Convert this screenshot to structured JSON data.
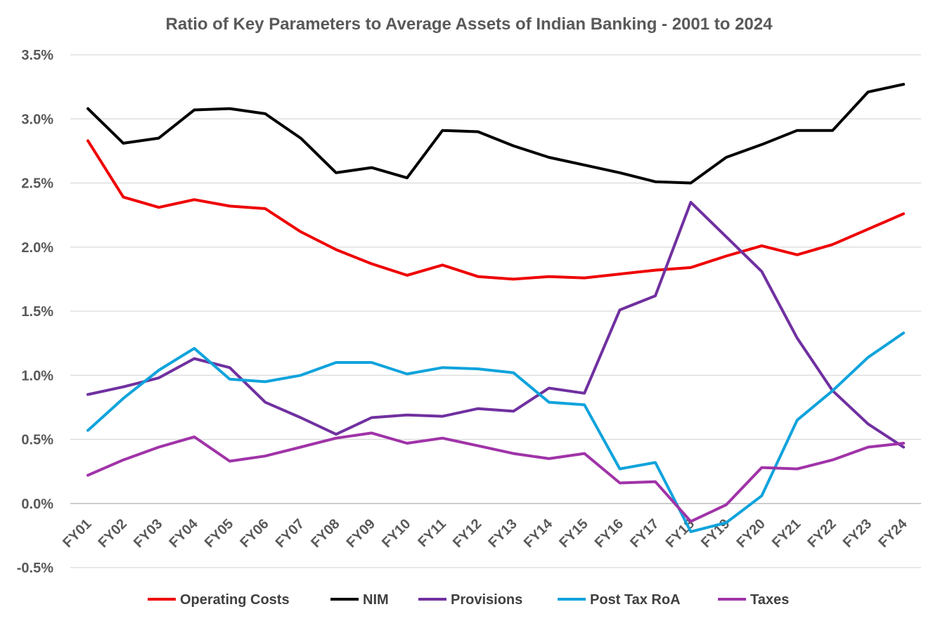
{
  "chart_data": {
    "type": "line",
    "title": "Ratio of Key Parameters to Average Assets of Indian Banking  - 2001 to 2024",
    "xlabel": "",
    "ylabel": "",
    "ylim": [
      -0.5,
      3.5
    ],
    "ytick_values": [
      -0.5,
      0.0,
      0.5,
      1.0,
      1.5,
      2.0,
      2.5,
      3.0,
      3.5
    ],
    "ytick_labels": [
      "-0.5%",
      "0.0%",
      "0.5%",
      "1.0%",
      "1.5%",
      "2.0%",
      "2.5%",
      "3.0%",
      "3.5%"
    ],
    "grid": "horizontal",
    "legend_position": "bottom",
    "categories": [
      "FY01",
      "FY02",
      "FY03",
      "FY04",
      "FY05",
      "FY06",
      "FY07",
      "FY08",
      "FY09",
      "FY10",
      "FY11",
      "FY12",
      "FY13",
      "FY14",
      "FY15",
      "FY16",
      "FY17",
      "FY18",
      "FY19",
      "FY20",
      "FY21",
      "FY22",
      "FY23",
      "FY24"
    ],
    "series": [
      {
        "name": "Operating Costs",
        "color": "#ee0000",
        "values": [
          2.83,
          2.39,
          2.31,
          2.37,
          2.32,
          2.3,
          2.12,
          1.98,
          1.87,
          1.78,
          1.86,
          1.77,
          1.75,
          1.77,
          1.76,
          1.79,
          1.82,
          1.84,
          1.93,
          2.01,
          1.94,
          2.02,
          2.14,
          2.26
        ]
      },
      {
        "name": "NIM",
        "color": "#000000",
        "values": [
          3.08,
          2.81,
          2.85,
          3.07,
          3.08,
          3.04,
          2.85,
          2.58,
          2.62,
          2.54,
          2.91,
          2.9,
          2.79,
          2.7,
          2.64,
          2.58,
          2.51,
          2.5,
          2.7,
          2.8,
          2.91,
          2.91,
          3.21,
          3.27
        ]
      },
      {
        "name": "Provisions",
        "color": "#7030a0",
        "values": [
          0.85,
          0.91,
          0.98,
          1.13,
          1.06,
          0.79,
          0.67,
          0.54,
          0.67,
          0.69,
          0.68,
          0.74,
          0.72,
          0.9,
          0.86,
          1.51,
          1.62,
          2.35,
          2.08,
          1.81,
          1.29,
          0.88,
          0.62,
          0.44
        ]
      },
      {
        "name": "Post Tax  RoA",
        "color": "#0fa3dc",
        "values": [
          0.57,
          0.82,
          1.04,
          1.21,
          0.97,
          0.95,
          1.0,
          1.1,
          1.1,
          1.01,
          1.06,
          1.05,
          1.02,
          0.79,
          0.77,
          0.27,
          0.32,
          -0.22,
          -0.15,
          0.06,
          0.65,
          0.88,
          1.14,
          1.33
        ]
      },
      {
        "name": "Taxes",
        "color": "#a033a8",
        "values": [
          0.22,
          0.34,
          0.44,
          0.52,
          0.33,
          0.37,
          0.44,
          0.51,
          0.55,
          0.47,
          0.51,
          0.45,
          0.39,
          0.35,
          0.39,
          0.16,
          0.17,
          -0.14,
          -0.01,
          0.28,
          0.27,
          0.34,
          0.44,
          0.47
        ]
      }
    ]
  }
}
